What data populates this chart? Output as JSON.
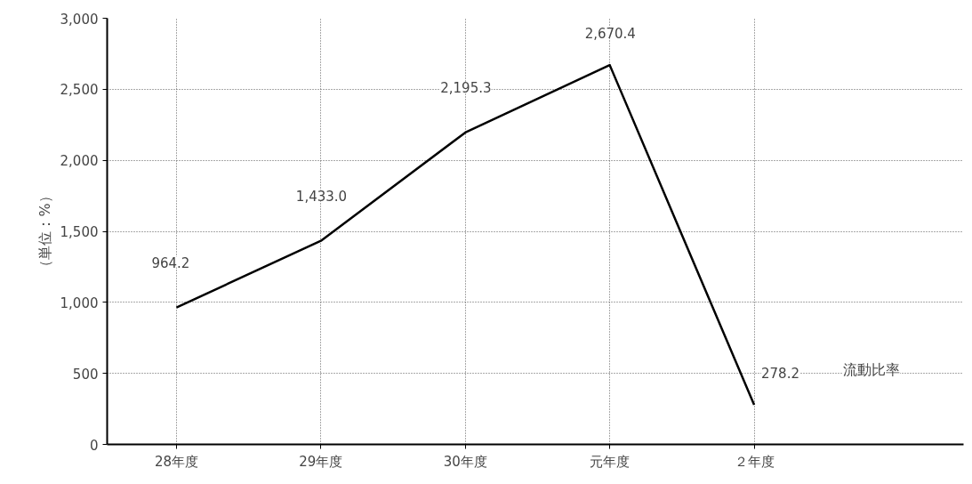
{
  "chart_data": {
    "type": "line",
    "ylabel": "（単位：%）",
    "categories": [
      "28年度",
      "29年度",
      "30年度",
      "元年度",
      "２年度"
    ],
    "series": [
      {
        "name": "流動比率",
        "color": "#000000",
        "values": [
          964.2,
          1433.0,
          2195.3,
          2670.4,
          278.2
        ],
        "value_labels": [
          "964.2",
          "1,433.0",
          "2,195.3",
          "2,670.4",
          "278.2"
        ]
      }
    ],
    "ylim": [
      0,
      3000
    ],
    "yticks": [
      0,
      500,
      {
        "value": 1000,
        "label": "1,000"
      },
      {
        "value": 1500,
        "label": "1,500"
      },
      {
        "value": 2000,
        "label": "2,000"
      },
      {
        "value": 2500,
        "label": "2,500"
      },
      {
        "value": 3000,
        "label": "3,000"
      }
    ],
    "grid": true,
    "legend": false,
    "marker": "none",
    "line_style": "solid"
  }
}
